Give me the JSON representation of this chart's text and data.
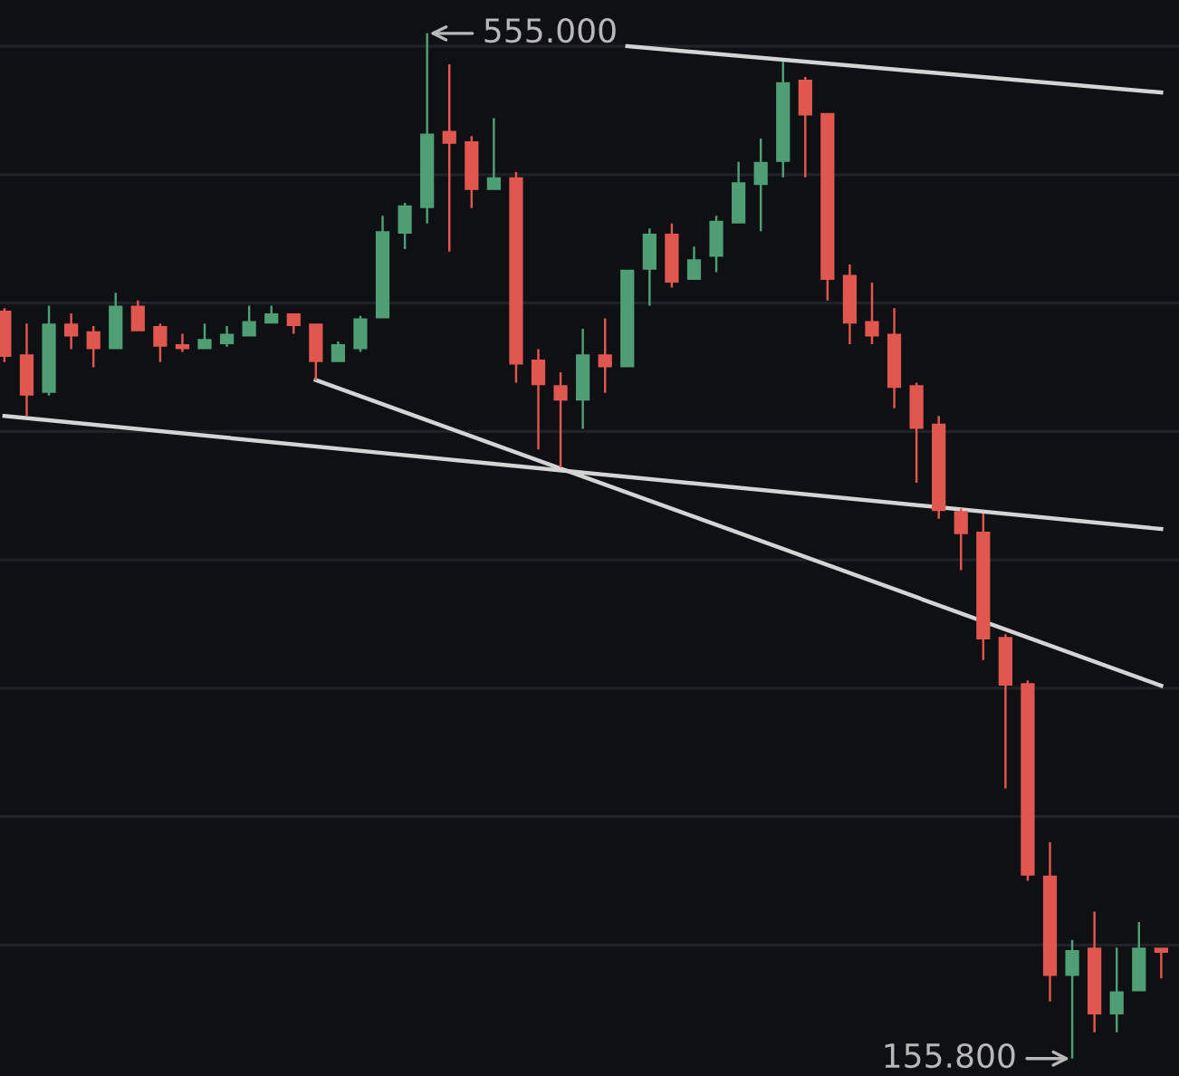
{
  "chart_data": {
    "type": "candlestick",
    "categories": [
      null,
      null,
      null,
      null,
      null,
      null,
      null,
      null,
      null,
      null,
      null,
      null,
      null,
      null,
      null,
      null,
      null,
      null,
      null,
      null,
      null,
      null,
      null,
      null,
      null,
      null,
      null,
      null,
      null,
      null,
      null,
      null,
      null,
      null,
      null,
      null,
      null,
      null,
      null,
      null,
      null,
      null,
      null,
      null,
      null,
      null,
      null,
      null,
      null,
      null,
      null,
      null,
      null
    ],
    "ohlc": [
      [
        447,
        448,
        427,
        429
      ],
      [
        430,
        442,
        406,
        414
      ],
      [
        415,
        449,
        414,
        442
      ],
      [
        442,
        446,
        432,
        437
      ],
      [
        439,
        441,
        425,
        432
      ],
      [
        432,
        454,
        432,
        449
      ],
      [
        449,
        451,
        439,
        439
      ],
      [
        441,
        442,
        427,
        433
      ],
      [
        434,
        438,
        431,
        432
      ],
      [
        432,
        442,
        432,
        436
      ],
      [
        434,
        441,
        433,
        438
      ],
      [
        437,
        449,
        437,
        443
      ],
      [
        442,
        449,
        442,
        446
      ],
      [
        446,
        446,
        438,
        441
      ],
      [
        442,
        442,
        420,
        427
      ],
      [
        427,
        435,
        427,
        434
      ],
      [
        432,
        445,
        431,
        444
      ],
      [
        444,
        484,
        444,
        478
      ],
      [
        477,
        489,
        471,
        488
      ],
      [
        487,
        555,
        481,
        516
      ],
      [
        517,
        543,
        470,
        512
      ],
      [
        513,
        515,
        487,
        494
      ],
      [
        494,
        522,
        494,
        499
      ],
      [
        499,
        501,
        419,
        426
      ],
      [
        428,
        432,
        393,
        418
      ],
      [
        418,
        423,
        386,
        412
      ],
      [
        412,
        440,
        401,
        430
      ],
      [
        430,
        444,
        415,
        425
      ],
      [
        425,
        463,
        425,
        463
      ],
      [
        463,
        479,
        449,
        477
      ],
      [
        477,
        481,
        456,
        458
      ],
      [
        459,
        472,
        459,
        467
      ],
      [
        468,
        484,
        462,
        482
      ],
      [
        481,
        505,
        481,
        497
      ],
      [
        496,
        514,
        478,
        505
      ],
      [
        505,
        544,
        499,
        536
      ],
      [
        537,
        538,
        499,
        523
      ],
      [
        524,
        524,
        451,
        459
      ],
      [
        461,
        465,
        434,
        442
      ],
      [
        443,
        458,
        434,
        437
      ],
      [
        438,
        448,
        409,
        417
      ],
      [
        418,
        419,
        380,
        401
      ],
      [
        403,
        406,
        366,
        369
      ],
      [
        369,
        370,
        346,
        360
      ],
      [
        361,
        368,
        311,
        319
      ],
      [
        320,
        321,
        261,
        301
      ],
      [
        302,
        303,
        225,
        227
      ],
      [
        227,
        240,
        178,
        188
      ],
      [
        188,
        202,
        155.8,
        198
      ],
      [
        199,
        213,
        166,
        173
      ],
      [
        173,
        199,
        166,
        182
      ],
      [
        182,
        209,
        182,
        199
      ],
      [
        199,
        199,
        187,
        197
      ]
    ],
    "colors": [
      "#e0574f",
      "#e0574f",
      "#4f9e74",
      "#e0574f",
      "#e0574f",
      "#4f9e74",
      "#e0574f",
      "#e0574f",
      "#e0574f",
      "#4f9e74",
      "#4f9e74",
      "#4f9e74",
      "#4f9e74",
      "#e0574f",
      "#e0574f",
      "#4f9e74",
      "#4f9e74",
      "#4f9e74",
      "#4f9e74",
      "#4f9e74",
      "#e0574f",
      "#e0574f",
      "#4f9e74",
      "#e0574f",
      "#e0574f",
      "#e0574f",
      "#4f9e74",
      "#e0574f",
      "#4f9e74",
      "#4f9e74",
      "#e0574f",
      "#4f9e74",
      "#4f9e74",
      "#4f9e74",
      "#4f9e74",
      "#4f9e74",
      "#e0574f",
      "#e0574f",
      "#e0574f",
      "#e0574f",
      "#e0574f",
      "#e0574f",
      "#e0574f",
      "#e0574f",
      "#e0574f",
      "#e0574f",
      "#e0574f",
      "#e0574f",
      "#4f9e74",
      "#e0574f",
      "#4f9e74",
      "#4f9e74",
      "#e0574f"
    ],
    "series": [
      {
        "type": "line",
        "color": "#d4d4d4",
        "values": [
          null,
          null,
          null,
          null,
          null,
          null,
          null,
          null,
          null,
          null,
          null,
          null,
          null,
          null,
          null,
          null,
          null,
          null,
          null,
          null,
          null,
          null,
          null,
          null,
          null,
          null,
          null,
          null,
          550,
          null,
          null,
          null,
          null,
          null,
          null,
          null,
          null,
          null,
          null,
          null,
          null,
          null,
          null,
          null,
          null,
          null,
          null,
          null,
          null,
          null,
          null,
          null,
          532
        ]
      },
      {
        "type": "line",
        "color": "#d4d4d4",
        "values": [
          406,
          null,
          null,
          null,
          null,
          null,
          null,
          null,
          null,
          null,
          null,
          null,
          null,
          null,
          null,
          null,
          null,
          null,
          null,
          null,
          null,
          null,
          null,
          null,
          null,
          null,
          null,
          null,
          null,
          null,
          null,
          null,
          null,
          null,
          null,
          null,
          null,
          null,
          null,
          null,
          null,
          null,
          null,
          null,
          null,
          null,
          null,
          null,
          null,
          null,
          null,
          null,
          362
        ]
      },
      {
        "type": "line",
        "color": "#d4d4d4",
        "values": [
          null,
          null,
          null,
          null,
          null,
          null,
          null,
          null,
          null,
          null,
          null,
          null,
          null,
          null,
          420,
          null,
          null,
          null,
          null,
          null,
          null,
          null,
          null,
          null,
          null,
          null,
          null,
          null,
          null,
          null,
          null,
          null,
          null,
          null,
          null,
          null,
          null,
          null,
          null,
          null,
          null,
          null,
          null,
          null,
          null,
          null,
          null,
          null,
          null,
          null,
          null,
          null,
          301
        ]
      }
    ],
    "ylim": [
      149,
      568
    ],
    "yticks": [
      {
        "value": 200,
        "label": null
      },
      {
        "value": 250,
        "label": null
      },
      {
        "value": 300,
        "label": null
      },
      {
        "value": 350,
        "label": null
      },
      {
        "value": 400,
        "label": null
      },
      {
        "value": 450,
        "label": null
      },
      {
        "value": 500,
        "label": null
      },
      {
        "value": 550,
        "label": null
      }
    ],
    "grid": "y",
    "line_style": "solid",
    "annotations": [
      "555.000",
      "155.800"
    ]
  }
}
